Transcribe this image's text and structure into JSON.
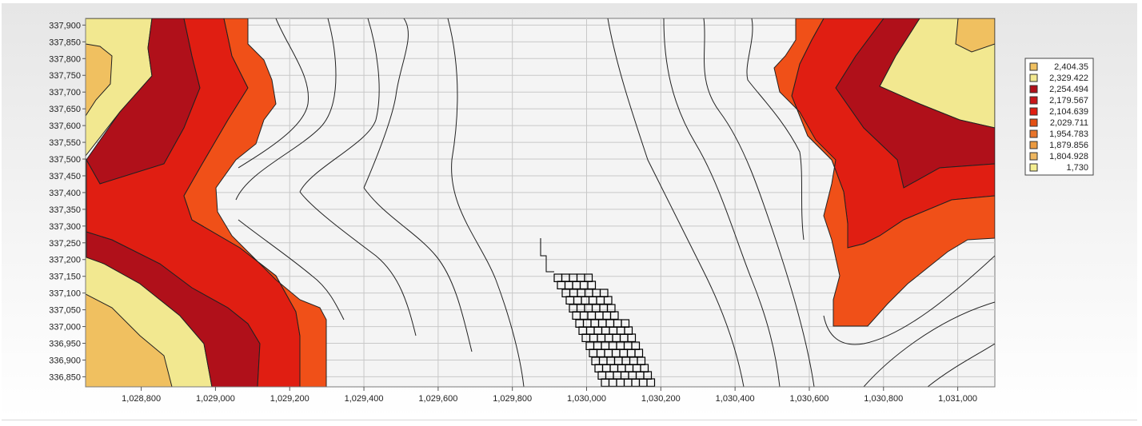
{
  "chart_data": {
    "type": "heatmap",
    "subtype": "contour",
    "title": "",
    "xlabel": "",
    "ylabel": "",
    "xlim": [
      1028650,
      1031100
    ],
    "ylim": [
      336820,
      337920
    ],
    "grid": true,
    "legend_position": "right",
    "x_ticks": [
      "1,028,800",
      "1,029,000",
      "1,029,200",
      "1,029,400",
      "1,029,600",
      "1,029,800",
      "1,030,000",
      "1,030,200",
      "1,030,400",
      "1,030,600",
      "1,030,800",
      "1,031,000"
    ],
    "x_tick_values": [
      1028800,
      1029000,
      1029200,
      1029400,
      1029600,
      1029800,
      1030000,
      1030200,
      1030400,
      1030600,
      1030800,
      1031000
    ],
    "y_ticks": [
      "337,900",
      "337,850",
      "337,800",
      "337,750",
      "337,700",
      "337,650",
      "337,600",
      "337,550",
      "337,500",
      "337,450",
      "337,400",
      "337,350",
      "337,300",
      "337,250",
      "337,200",
      "337,150",
      "337,100",
      "337,050",
      "337,000",
      "336,950",
      "336,900",
      "336,850"
    ],
    "y_tick_values": [
      337900,
      337850,
      337800,
      337750,
      337700,
      337650,
      337600,
      337550,
      337500,
      337450,
      337400,
      337350,
      337300,
      337250,
      337200,
      337150,
      337100,
      337050,
      337000,
      336950,
      336900,
      336850
    ],
    "levels": [
      {
        "label": "2,404.35",
        "value": 2404.35,
        "color": "#f0c060"
      },
      {
        "label": "2,329.422",
        "value": 2329.422,
        "color": "#f2e890"
      },
      {
        "label": "2,254.494",
        "value": 2254.494,
        "color": "#b0101a"
      },
      {
        "label": "2,179.567",
        "value": 2179.567,
        "color": "#c8161a"
      },
      {
        "label": "2,104.639",
        "value": 2104.639,
        "color": "#e01e12"
      },
      {
        "label": "2,029.711",
        "value": 2029.711,
        "color": "#e45014"
      },
      {
        "label": "1,954.783",
        "value": 1954.783,
        "color": "#e8742a"
      },
      {
        "label": "1,879.856",
        "value": 1879.856,
        "color": "#eb9a40"
      },
      {
        "label": "1,804.928",
        "value": 1804.928,
        "color": "#eeb660"
      },
      {
        "label": "1,730",
        "value": 1730,
        "color": "#f4ee90"
      }
    ],
    "colors": {
      "outer_yellow": "#f2e890",
      "outer_orange": "#f0c060",
      "dark_red": "#b0101a",
      "red": "#e01e12",
      "orange_red": "#f05018",
      "contour_line": "#222222",
      "grid": "#c8c8c8",
      "plot_background": "#f4f4f4"
    },
    "features": [
      "filled contour bands (left edge, x < 1,029,250)",
      "filled contour bands (upper-right, x > 1,030,550)",
      "unfilled contour lines across center",
      "stair-step grid-cell highlight near x 1,029,850–1,030,150, y 336,840–337,250"
    ]
  }
}
